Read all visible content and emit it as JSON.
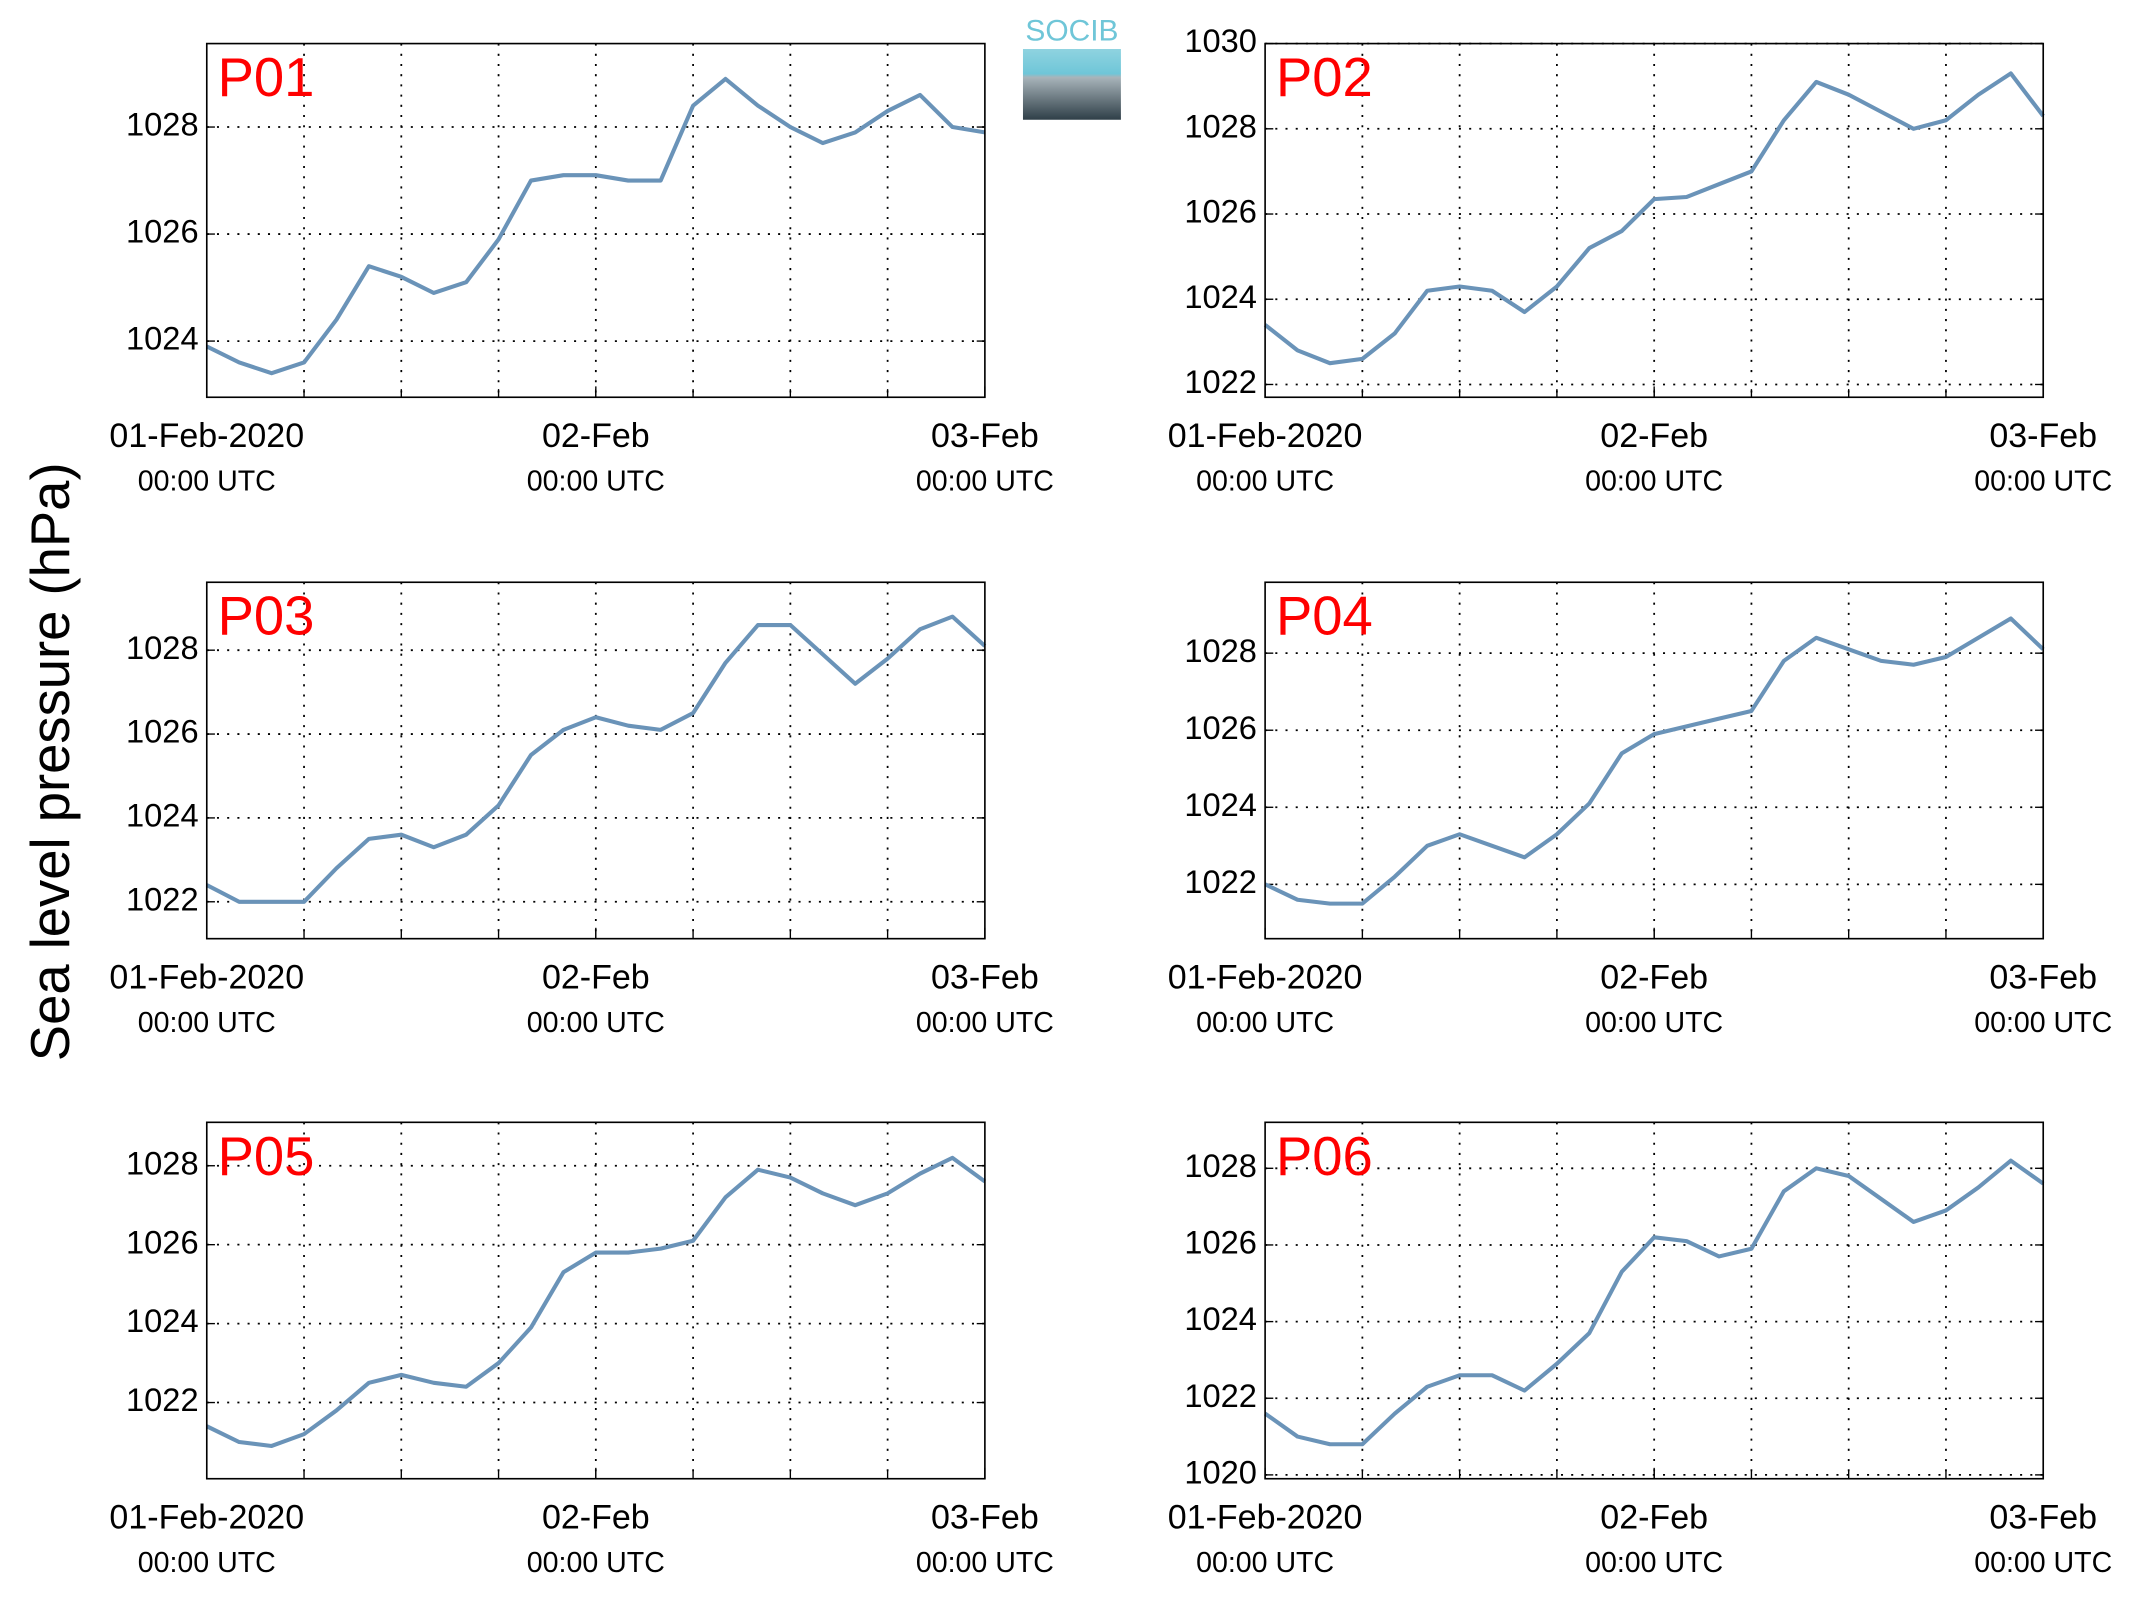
{
  "ylabel": "Sea level pressure (hPa)",
  "logo": "SOCIB",
  "chart_data": [
    {
      "type": "line",
      "title": "P01",
      "color": "#6a93b8",
      "x": [
        0,
        2,
        4,
        6,
        8,
        10,
        12,
        14,
        16,
        18,
        20,
        22,
        24,
        26,
        28,
        30,
        32,
        34,
        36,
        38,
        40,
        42,
        44,
        46,
        48
      ],
      "values": [
        1023.9,
        1023.6,
        1023.4,
        1023.6,
        1024.4,
        1025.4,
        1025.2,
        1024.9,
        1025.1,
        1025.9,
        1027.0,
        1027.1,
        1027.1,
        1027.0,
        1027.0,
        1028.4,
        1028.9,
        1028.4,
        1028.0,
        1027.7,
        1027.9,
        1028.3,
        1028.6,
        1028.0,
        1027.9
      ],
      "xlim": [
        0,
        48
      ],
      "xticks": [
        {
          "value": 0,
          "label": "01-Feb-2020"
        },
        {
          "value": 24,
          "label": "02-Feb"
        },
        {
          "value": 48,
          "label": "03-Feb"
        }
      ],
      "xtick_sublabels": [
        "00:00 UTC",
        "00:00 UTC",
        "00:00 UTC"
      ],
      "xgrid": [
        6,
        12,
        18,
        24,
        30,
        36,
        42
      ],
      "ylim": [
        1022.95,
        1029.56
      ],
      "yticks": [
        1024,
        1026,
        1028
      ],
      "grid": true
    },
    {
      "type": "line",
      "title": "P02",
      "color": "#6a93b8",
      "x": [
        0,
        2,
        4,
        6,
        8,
        10,
        12,
        14,
        16,
        18,
        20,
        22,
        24,
        26,
        28,
        30,
        32,
        34,
        36,
        38,
        40,
        42,
        44,
        46,
        48
      ],
      "values": [
        1023.4,
        1022.8,
        1022.5,
        1022.6,
        1023.2,
        1024.2,
        1024.3,
        1024.2,
        1023.7,
        1024.3,
        1025.2,
        1025.6,
        1026.35,
        1026.4,
        1026.7,
        1027.0,
        1028.2,
        1029.1,
        1028.8,
        1028.4,
        1028.0,
        1028.2,
        1028.8,
        1029.3,
        1028.3
      ],
      "xlim": [
        0,
        48
      ],
      "xticks": [
        {
          "value": 0,
          "label": "01-Feb-2020"
        },
        {
          "value": 24,
          "label": "02-Feb"
        },
        {
          "value": 48,
          "label": "03-Feb"
        }
      ],
      "xtick_sublabels": [
        "00:00 UTC",
        "00:00 UTC",
        "00:00 UTC"
      ],
      "xgrid": [
        6,
        12,
        18,
        24,
        30,
        36,
        42
      ],
      "ylim": [
        1021.7,
        1030
      ],
      "yticks": [
        1022,
        1024,
        1026,
        1028,
        1030
      ],
      "grid": true
    },
    {
      "type": "line",
      "title": "P03",
      "color": "#6a93b8",
      "x": [
        0,
        2,
        4,
        6,
        8,
        10,
        12,
        14,
        16,
        18,
        20,
        22,
        24,
        26,
        28,
        30,
        32,
        34,
        36,
        38,
        40,
        42,
        44,
        46,
        48
      ],
      "values": [
        1022.4,
        1022.0,
        1022.0,
        1022.0,
        1022.8,
        1023.5,
        1023.6,
        1023.3,
        1023.6,
        1024.3,
        1025.5,
        1026.1,
        1026.4,
        1026.2,
        1026.1,
        1026.5,
        1027.7,
        1028.6,
        1028.6,
        1027.9,
        1027.2,
        1027.8,
        1028.5,
        1028.8,
        1028.1
      ],
      "xlim": [
        0,
        48
      ],
      "xticks": [
        {
          "value": 0,
          "label": "01-Feb-2020"
        },
        {
          "value": 24,
          "label": "02-Feb"
        },
        {
          "value": 48,
          "label": "03-Feb"
        }
      ],
      "xtick_sublabels": [
        "00:00 UTC",
        "00:00 UTC",
        "00:00 UTC"
      ],
      "xgrid": [
        6,
        12,
        18,
        24,
        30,
        36,
        42
      ],
      "ylim": [
        1021.12,
        1029.62
      ],
      "yticks": [
        1022,
        1024,
        1026,
        1028
      ],
      "grid": true
    },
    {
      "type": "line",
      "title": "P04",
      "color": "#6a93b8",
      "x": [
        0,
        2,
        4,
        6,
        8,
        10,
        12,
        14,
        16,
        18,
        20,
        22,
        24,
        26,
        28,
        30,
        32,
        34,
        36,
        38,
        40,
        42,
        44,
        46,
        48
      ],
      "values": [
        1022.0,
        1021.6,
        1021.5,
        1021.5,
        1022.2,
        1023.0,
        1023.3,
        1023.0,
        1022.7,
        1023.3,
        1024.1,
        1025.4,
        1025.9,
        1026.1,
        1026.3,
        1026.5,
        1027.8,
        1028.4,
        1028.1,
        1027.8,
        1027.7,
        1027.9,
        1028.4,
        1028.9,
        1028.1
      ],
      "xlim": [
        0,
        48
      ],
      "xticks": [
        {
          "value": 0,
          "label": "01-Feb-2020"
        },
        {
          "value": 24,
          "label": "02-Feb"
        },
        {
          "value": 48,
          "label": "03-Feb"
        }
      ],
      "xtick_sublabels": [
        "00:00 UTC",
        "00:00 UTC",
        "00:00 UTC"
      ],
      "xgrid": [
        6,
        12,
        18,
        24,
        30,
        36,
        42
      ],
      "ylim": [
        1020.59,
        1029.84
      ],
      "yticks": [
        1022,
        1024,
        1026,
        1028
      ],
      "grid": true
    },
    {
      "type": "line",
      "title": "P05",
      "color": "#6a93b8",
      "x": [
        0,
        2,
        4,
        6,
        8,
        10,
        12,
        14,
        16,
        18,
        20,
        22,
        24,
        26,
        28,
        30,
        32,
        34,
        36,
        38,
        40,
        42,
        44,
        46,
        48
      ],
      "values": [
        1021.4,
        1021.0,
        1020.9,
        1021.2,
        1021.8,
        1022.5,
        1022.7,
        1022.5,
        1022.4,
        1023.0,
        1023.9,
        1025.3,
        1025.8,
        1025.8,
        1025.9,
        1026.1,
        1027.2,
        1027.9,
        1027.7,
        1027.3,
        1027.0,
        1027.3,
        1027.8,
        1028.2,
        1027.6
      ],
      "xlim": [
        0,
        48
      ],
      "xticks": [
        {
          "value": 0,
          "label": "01-Feb-2020"
        },
        {
          "value": 24,
          "label": "02-Feb"
        },
        {
          "value": 48,
          "label": "03-Feb"
        }
      ],
      "xtick_sublabels": [
        "00:00 UTC",
        "00:00 UTC",
        "00:00 UTC"
      ],
      "xgrid": [
        6,
        12,
        18,
        24,
        30,
        36,
        42
      ],
      "ylim": [
        1020.07,
        1029.1
      ],
      "yticks": [
        1022,
        1024,
        1026,
        1028
      ],
      "grid": true
    },
    {
      "type": "line",
      "title": "P06",
      "color": "#6a93b8",
      "x": [
        0,
        2,
        4,
        6,
        8,
        10,
        12,
        14,
        16,
        18,
        20,
        22,
        24,
        26,
        28,
        30,
        32,
        34,
        36,
        38,
        40,
        42,
        44,
        46,
        48
      ],
      "values": [
        1021.6,
        1021.0,
        1020.8,
        1020.8,
        1021.6,
        1022.3,
        1022.6,
        1022.6,
        1022.2,
        1022.9,
        1023.7,
        1025.3,
        1026.2,
        1026.1,
        1025.7,
        1025.9,
        1027.4,
        1028.0,
        1027.8,
        1027.2,
        1026.6,
        1026.9,
        1027.5,
        1028.2,
        1027.6
      ],
      "xlim": [
        0,
        48
      ],
      "xticks": [
        {
          "value": 0,
          "label": "01-Feb-2020"
        },
        {
          "value": 24,
          "label": "02-Feb"
        },
        {
          "value": 48,
          "label": "03-Feb"
        }
      ],
      "xtick_sublabels": [
        "00:00 UTC",
        "00:00 UTC",
        "00:00 UTC"
      ],
      "xgrid": [
        6,
        12,
        18,
        24,
        30,
        36,
        42
      ],
      "ylim": [
        1019.9,
        1029.2
      ],
      "yticks": [
        1020,
        1022,
        1024,
        1026,
        1028
      ],
      "grid": true
    }
  ]
}
